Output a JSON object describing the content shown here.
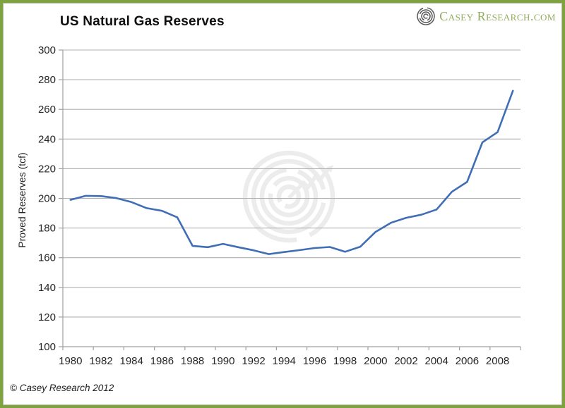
{
  "header": {
    "title": "US Natural Gas Reserves"
  },
  "logo": {
    "text": "Casey Research.com",
    "icon": "spiral-logo-icon"
  },
  "footer": {
    "copyright": "© Casey Research 2012"
  },
  "colors": {
    "frame_green": "#7da23f",
    "line_blue": "#3f6eb5",
    "gridline_gray": "#b0b0b0",
    "axis_gray": "#a0a0a0",
    "label_text": "#262626",
    "logo_green": "#92ac60",
    "watermark_gray": "#ececec"
  },
  "chart_data": {
    "type": "line",
    "title": "US Natural Gas Reserves",
    "xlabel": "",
    "ylabel": "Proved Reserves (tcf)",
    "x": [
      1980,
      1981,
      1982,
      1983,
      1984,
      1985,
      1986,
      1987,
      1988,
      1989,
      1990,
      1991,
      1992,
      1993,
      1994,
      1995,
      1996,
      1997,
      1998,
      1999,
      2000,
      2001,
      2002,
      2003,
      2004,
      2005,
      2006,
      2007,
      2008,
      2009
    ],
    "values": [
      199.0,
      201.7,
      201.5,
      200.2,
      197.5,
      193.4,
      191.6,
      187.2,
      168.0,
      167.1,
      169.3,
      167.1,
      165.0,
      162.4,
      163.8,
      165.1,
      166.5,
      167.2,
      164.0,
      167.4,
      177.4,
      183.5,
      186.9,
      189.0,
      192.5,
      204.4,
      211.1,
      237.7,
      244.7,
      272.5
    ],
    "xtick_labels": [
      "1980",
      "1982",
      "1984",
      "1986",
      "1988",
      "1990",
      "1992",
      "1994",
      "1996",
      "1998",
      "2000",
      "2002",
      "2004",
      "2006",
      "2008"
    ],
    "ylim": [
      100,
      300
    ],
    "ytick_step": 20,
    "grid": "horizontal",
    "legend": "none"
  }
}
